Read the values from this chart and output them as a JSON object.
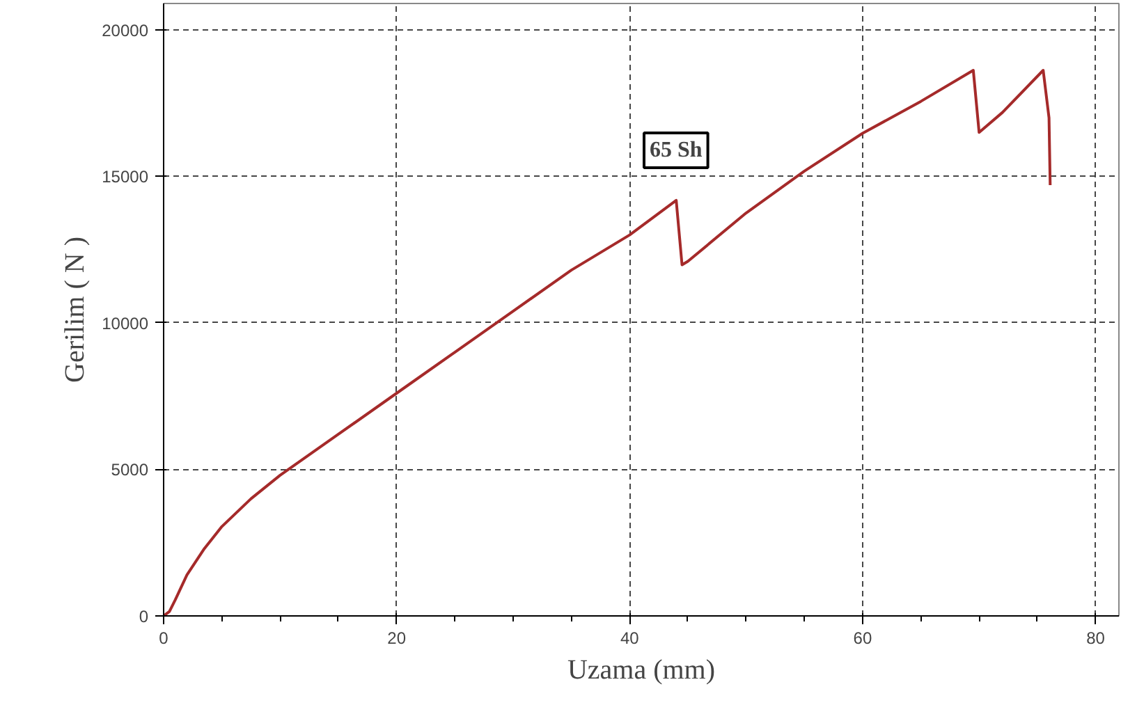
{
  "chart_data": {
    "type": "line",
    "xlabel": "Uzama (mm)",
    "ylabel": "Gerilim ( N )",
    "x": [
      0,
      0.5,
      1,
      2,
      3.5,
      5,
      7.5,
      10,
      12.5,
      15,
      20,
      25,
      30,
      35,
      40,
      44,
      44.5,
      45,
      50,
      55,
      60,
      65,
      69.5,
      70,
      72,
      75.5,
      76,
      76.1
    ],
    "series": [
      {
        "color": "#a52a2a",
        "values": [
          0,
          150,
          550,
          1400,
          2300,
          3050,
          4000,
          4800,
          5500,
          6200,
          7600,
          9000,
          10400,
          11800,
          13000,
          14180,
          11980,
          12100,
          13750,
          15180,
          16470,
          17560,
          18620,
          16500,
          17180,
          18620,
          17000,
          14700
        ]
      }
    ],
    "xlim": [
      0,
      82
    ],
    "ylim": [
      0,
      20900
    ],
    "xticks": [
      0,
      20,
      40,
      60,
      80
    ],
    "yticks": [
      0,
      5000,
      10000,
      15000,
      20000
    ],
    "grid": true,
    "marker": "none",
    "line_style": "solid",
    "annotations": [
      "65 Sh"
    ]
  }
}
